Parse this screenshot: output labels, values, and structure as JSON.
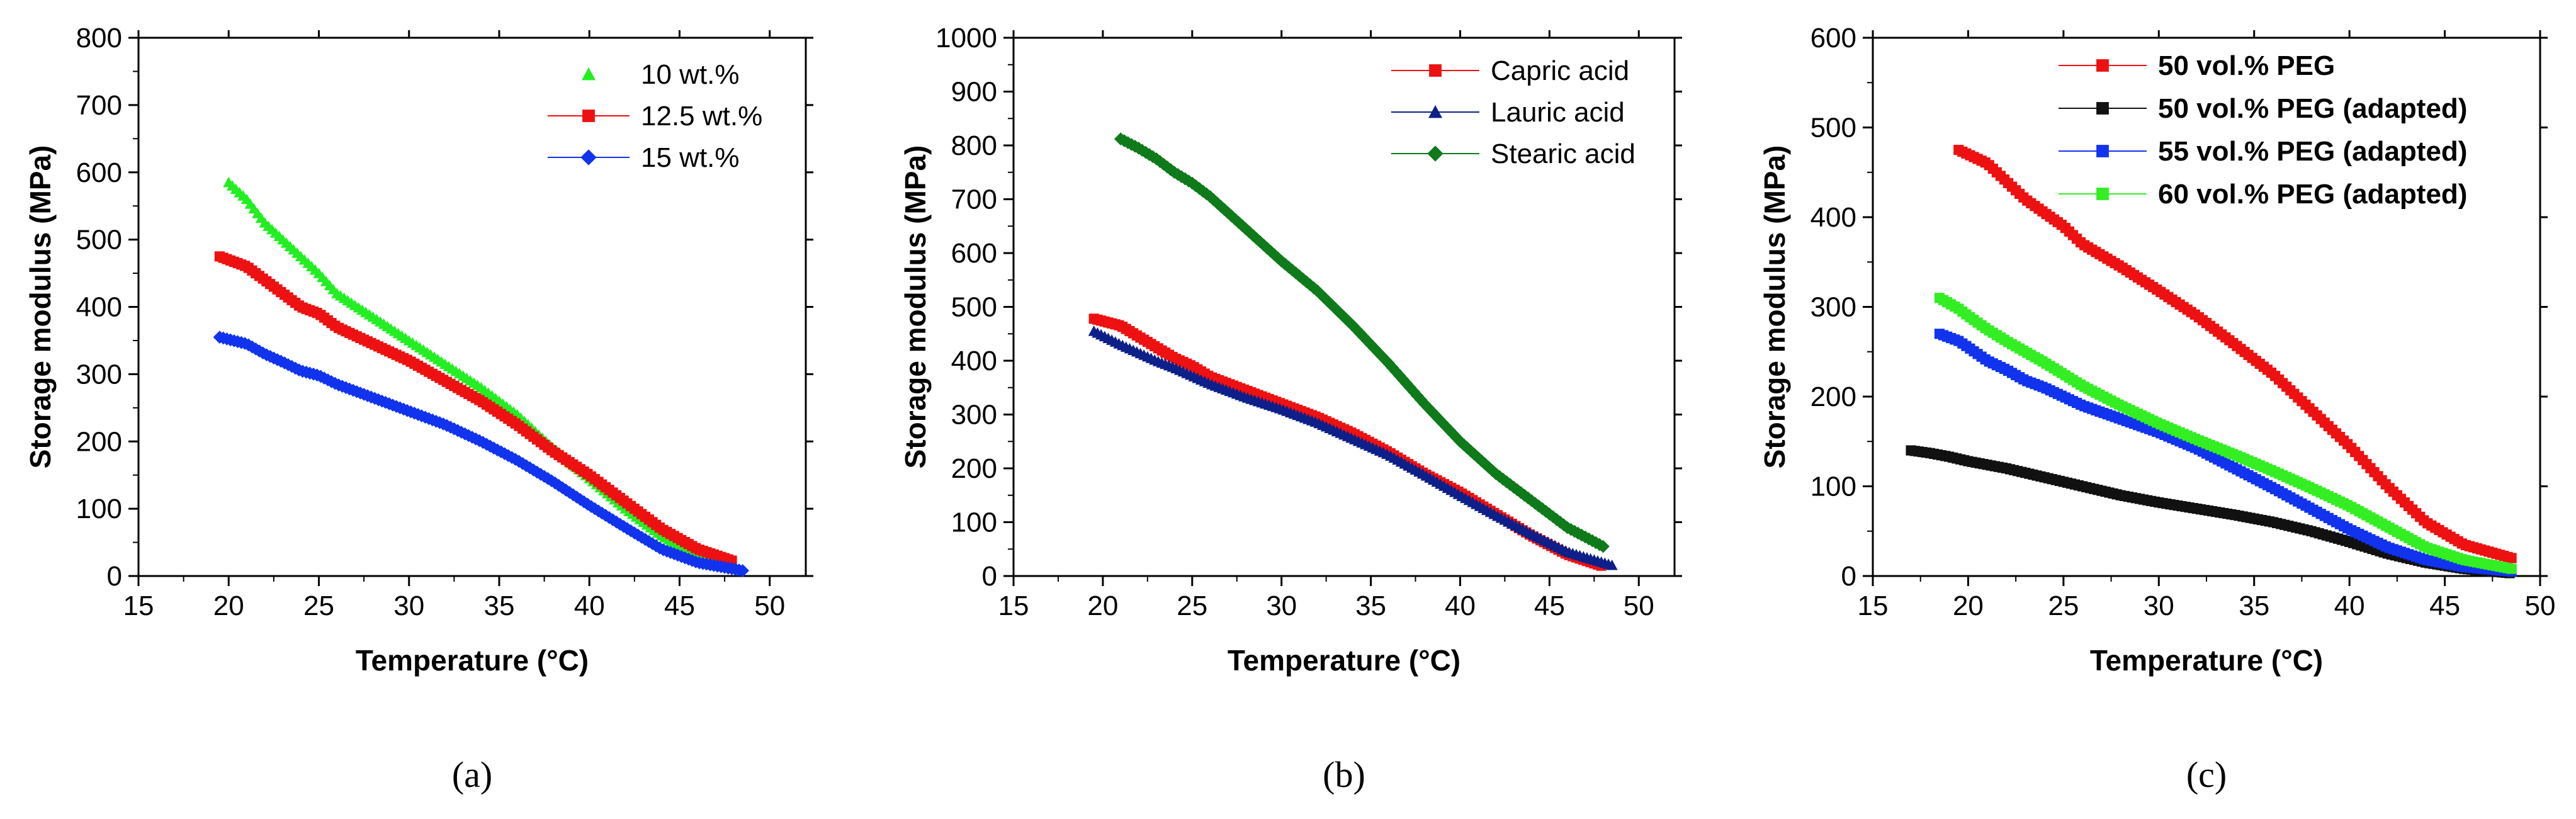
{
  "chart_data": [
    {
      "type": "scatter",
      "caption": "(a)",
      "xlabel": "Temperature (°C)",
      "ylabel": "Storage modulus (MPa)",
      "xlim": [
        15,
        52
      ],
      "ylim": [
        0,
        800
      ],
      "xticks": [
        15,
        20,
        25,
        30,
        35,
        40,
        45,
        50
      ],
      "yticks": [
        0,
        100,
        200,
        300,
        400,
        500,
        600,
        700,
        800
      ],
      "legend_position": "top-right",
      "legend_bold": false,
      "series": [
        {
          "name": "10 wt.%",
          "color": "#22ee22",
          "marker": "triangle",
          "line_in_legend": false,
          "x": [
            20,
            21,
            22,
            23,
            24,
            25,
            26,
            28,
            30,
            32,
            34,
            36,
            38,
            40,
            42,
            44,
            46,
            48
          ],
          "y": [
            585,
            560,
            525,
            500,
            475,
            450,
            420,
            385,
            350,
            315,
            280,
            240,
            190,
            145,
            100,
            60,
            30,
            15
          ]
        },
        {
          "name": "12.5 wt.%",
          "color": "#ee1111",
          "marker": "square",
          "line_in_legend": true,
          "x": [
            19.5,
            21,
            22,
            23,
            24,
            25,
            26,
            28,
            30,
            32,
            34,
            36,
            38,
            40,
            42,
            44,
            46,
            48
          ],
          "y": [
            475,
            460,
            440,
            420,
            400,
            390,
            370,
            345,
            320,
            290,
            260,
            225,
            185,
            150,
            110,
            70,
            40,
            22
          ]
        },
        {
          "name": "15 wt.%",
          "color": "#1133ee",
          "marker": "diamond",
          "line_in_legend": true,
          "x": [
            19.5,
            21,
            22,
            23,
            24,
            25,
            26,
            28,
            30,
            32,
            34,
            36,
            38,
            40,
            42,
            44,
            46,
            48.5
          ],
          "y": [
            355,
            345,
            330,
            318,
            305,
            298,
            285,
            265,
            245,
            225,
            200,
            172,
            140,
            105,
            72,
            40,
            20,
            8
          ]
        }
      ]
    },
    {
      "type": "scatter",
      "caption": "(b)",
      "xlabel": "Temperature (°C)",
      "ylabel": "Storage modulus (MPa)",
      "xlim": [
        15,
        52
      ],
      "ylim": [
        0,
        1000
      ],
      "xticks": [
        15,
        20,
        25,
        30,
        35,
        40,
        45,
        50
      ],
      "yticks": [
        0,
        100,
        200,
        300,
        400,
        500,
        600,
        700,
        800,
        900,
        1000
      ],
      "legend_position": "top-right",
      "legend_bold": false,
      "series": [
        {
          "name": "Capric acid",
          "color": "#ee1111",
          "marker": "square",
          "line_in_legend": true,
          "x": [
            19.5,
            21,
            22,
            23,
            24,
            25,
            26,
            28,
            30,
            32,
            34,
            36,
            38,
            40,
            42,
            44,
            46,
            48
          ],
          "y": [
            478,
            465,
            445,
            425,
            405,
            390,
            370,
            345,
            320,
            295,
            265,
            230,
            190,
            155,
            115,
            75,
            40,
            18
          ]
        },
        {
          "name": "Lauric acid",
          "color": "#0d1f88",
          "marker": "triangle",
          "line_in_legend": true,
          "x": [
            19.5,
            21,
            22,
            23,
            24,
            25,
            26,
            28,
            30,
            32,
            34,
            36,
            38,
            40,
            42,
            44,
            46,
            48.5
          ],
          "y": [
            455,
            430,
            415,
            400,
            387,
            372,
            357,
            332,
            310,
            285,
            255,
            225,
            188,
            150,
            113,
            78,
            45,
            20
          ]
        },
        {
          "name": "Stearic acid",
          "color": "#0e7a1a",
          "marker": "diamond",
          "line_in_legend": true,
          "x": [
            21,
            22,
            23,
            24,
            25,
            26,
            28,
            30,
            32,
            34,
            36,
            38,
            40,
            42,
            44,
            46,
            48
          ],
          "y": [
            812,
            795,
            775,
            750,
            730,
            705,
            645,
            585,
            530,
            465,
            395,
            320,
            250,
            190,
            140,
            90,
            55
          ]
        }
      ]
    },
    {
      "type": "scatter",
      "caption": "(c)",
      "xlabel": "Temperature (°C)",
      "ylabel": "Storage modulus (MPa)",
      "xlim": [
        15,
        50
      ],
      "ylim": [
        0,
        600
      ],
      "xticks": [
        15,
        20,
        25,
        30,
        35,
        40,
        45,
        50
      ],
      "yticks": [
        0,
        100,
        200,
        300,
        400,
        500,
        600
      ],
      "legend_position": "top-right",
      "legend_bold": true,
      "series": [
        {
          "name": "50 vol.% PEG",
          "color": "#ee1111",
          "marker": "square",
          "line_in_legend": true,
          "x": [
            19.5,
            21,
            22,
            23,
            24,
            25,
            26,
            28,
            30,
            32,
            34,
            36,
            38,
            40,
            42,
            44,
            46,
            48.5
          ],
          "y": [
            475,
            460,
            440,
            420,
            405,
            390,
            370,
            345,
            318,
            290,
            258,
            225,
            185,
            145,
            100,
            60,
            35,
            20
          ]
        },
        {
          "name": "50 vol.% PEG (adapted)",
          "color": "#111111",
          "marker": "square",
          "line_in_legend": true,
          "x": [
            17,
            18,
            19,
            20,
            22,
            24,
            26,
            28,
            30,
            32,
            34,
            36,
            38,
            40,
            42,
            44,
            46,
            48.5
          ],
          "y": [
            140,
            137,
            133,
            128,
            120,
            110,
            100,
            90,
            82,
            75,
            68,
            60,
            50,
            38,
            25,
            15,
            8,
            3
          ]
        },
        {
          "name": "55 vol.% PEG (adapted)",
          "color": "#1133ee",
          "marker": "square",
          "line_in_legend": true,
          "x": [
            18.5,
            19.5,
            20,
            21,
            22,
            23,
            24,
            25,
            26,
            28,
            30,
            32,
            34,
            36,
            38,
            40,
            42,
            44,
            46,
            48.5
          ],
          "y": [
            270,
            262,
            255,
            240,
            230,
            218,
            210,
            200,
            190,
            175,
            160,
            142,
            120,
            98,
            75,
            52,
            32,
            18,
            10,
            5
          ]
        },
        {
          "name": "60 vol.% PEG (adapted)",
          "color": "#33ee22",
          "marker": "square",
          "line_in_legend": true,
          "x": [
            18.5,
            19.5,
            20,
            21,
            22,
            23,
            24,
            25,
            26,
            28,
            30,
            32,
            34,
            36,
            38,
            40,
            42,
            44,
            46,
            48.5
          ],
          "y": [
            310,
            298,
            290,
            275,
            262,
            250,
            238,
            225,
            212,
            190,
            170,
            152,
            135,
            117,
            98,
            78,
            55,
            32,
            18,
            8
          ]
        }
      ]
    }
  ]
}
